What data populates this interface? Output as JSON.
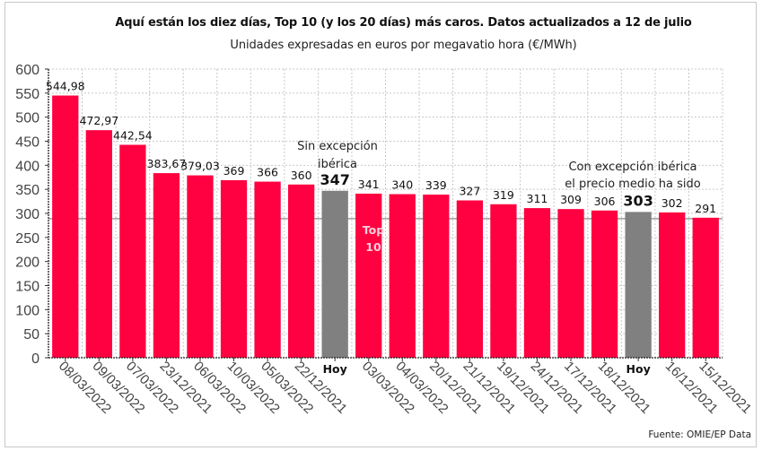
{
  "chart_data": {
    "type": "bar",
    "title": "Aquí están los diez días, Top 10  (y los 20 días) más caros. Datos actualizados a 12 de julio",
    "subtitle": "Unidades expresadas en euros por megavatio hora (€/MWh)",
    "xlabel": "",
    "ylabel": "",
    "ylim": [
      0,
      600
    ],
    "yticks": [
      "0",
      "50",
      "100",
      "150",
      "200",
      "250",
      "300",
      "350",
      "400",
      "450",
      "500",
      "550",
      "600"
    ],
    "grid": true,
    "reference_line": 289,
    "categories": [
      "08/03/2022",
      "09/03/2022",
      "07/03/2022",
      "23/12/2021",
      "06/03/2022",
      "10/03/2022",
      "05/03/2022",
      "22/12/2021",
      "Hoy",
      "03/03/2022",
      "04/03/2022",
      "20/12/2021",
      "21/12/2021",
      "19/12/2021",
      "24/12/2021",
      "17/12/2021",
      "18/12/2021",
      "Hoy",
      "16/12/2021",
      "15/12/2021"
    ],
    "values": [
      544.98,
      472.97,
      442.54,
      383.67,
      379.03,
      369,
      366,
      360,
      347,
      341,
      340,
      339,
      327,
      319,
      311,
      309,
      306,
      303,
      302,
      291
    ],
    "value_labels": [
      "544,98",
      "472,97",
      "442,54",
      "383,67",
      "379,03",
      "369",
      "366",
      "360",
      "347",
      "341",
      "340",
      "339",
      "327",
      "319",
      "311",
      "309",
      "306",
      "303",
      "302",
      "291"
    ],
    "highlight": [
      false,
      false,
      false,
      false,
      false,
      false,
      false,
      false,
      true,
      false,
      false,
      false,
      false,
      false,
      false,
      false,
      false,
      true,
      false,
      false
    ],
    "colors": {
      "bar": "#ff0040",
      "highlight": "#808080",
      "grid": "#c8c8c8",
      "reference": "#888888"
    },
    "annotations": {
      "sin_excepcion": [
        "Sin excepción",
        "ibérica"
      ],
      "con_excepcion": [
        "Con excepción ibérica",
        "el precio medio ha sido"
      ],
      "top10": [
        "Top",
        "10"
      ]
    }
  },
  "footer": {
    "source": "Fuente: OMIE/EP Data"
  }
}
